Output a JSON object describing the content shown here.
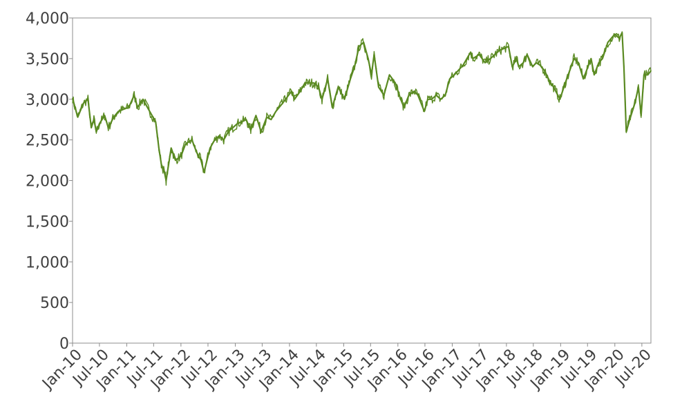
{
  "chart_data": {
    "type": "line",
    "title": "",
    "xlabel": "",
    "ylabel": "",
    "ylim": [
      0,
      4000
    ],
    "yticks": [
      {
        "value": 0,
        "label": "0"
      },
      {
        "value": 500,
        "label": "500"
      },
      {
        "value": 1000,
        "label": "1,000"
      },
      {
        "value": 1500,
        "label": "1,500"
      },
      {
        "value": 2000,
        "label": "2,000"
      },
      {
        "value": 2500,
        "label": "2,500"
      },
      {
        "value": 3000,
        "label": "3,000"
      },
      {
        "value": 3500,
        "label": "3,500"
      },
      {
        "value": 4000,
        "label": "4,000"
      }
    ],
    "xlim": [
      "2010-01-01",
      "2020-08-31"
    ],
    "xticks": [
      {
        "date": "2010-01-01",
        "label": "Jan-10"
      },
      {
        "date": "2010-07-01",
        "label": "Jul-10"
      },
      {
        "date": "2011-01-01",
        "label": "Jan-11"
      },
      {
        "date": "2011-07-01",
        "label": "Jul-11"
      },
      {
        "date": "2012-01-01",
        "label": "Jan-12"
      },
      {
        "date": "2012-07-01",
        "label": "Jul-12"
      },
      {
        "date": "2013-01-01",
        "label": "Jan-13"
      },
      {
        "date": "2013-07-01",
        "label": "Jul-13"
      },
      {
        "date": "2014-01-01",
        "label": "Jan-14"
      },
      {
        "date": "2014-07-01",
        "label": "Jul-14"
      },
      {
        "date": "2015-01-01",
        "label": "Jan-15"
      },
      {
        "date": "2015-07-01",
        "label": "Jul-15"
      },
      {
        "date": "2016-01-01",
        "label": "Jan-16"
      },
      {
        "date": "2016-07-01",
        "label": "Jul-16"
      },
      {
        "date": "2017-01-01",
        "label": "Jan-17"
      },
      {
        "date": "2017-07-01",
        "label": "Jul-17"
      },
      {
        "date": "2018-01-01",
        "label": "Jan-18"
      },
      {
        "date": "2018-07-01",
        "label": "Jul-18"
      },
      {
        "date": "2019-01-01",
        "label": "Jan-19"
      },
      {
        "date": "2019-07-01",
        "label": "Jul-19"
      },
      {
        "date": "2020-01-01",
        "label": "Jan-20"
      },
      {
        "date": "2020-07-01",
        "label": "Jul-20"
      }
    ],
    "grid": false,
    "legend": "none",
    "series": [
      {
        "color": "#5a8a22",
        "x": [
          "2010-01-01",
          "2010-02-05",
          "2010-03-15",
          "2010-04-15",
          "2010-05-07",
          "2010-05-25",
          "2010-06-10",
          "2010-07-01",
          "2010-08-05",
          "2010-08-30",
          "2010-10-05",
          "2010-11-05",
          "2010-12-15",
          "2011-01-15",
          "2011-02-20",
          "2011-03-15",
          "2011-04-20",
          "2011-05-20",
          "2011-06-20",
          "2011-07-15",
          "2011-08-05",
          "2011-08-22",
          "2011-09-12",
          "2011-09-23",
          "2011-10-27",
          "2011-11-25",
          "2012-01-01",
          "2012-02-01",
          "2012-03-15",
          "2012-04-15",
          "2012-05-15",
          "2012-06-04",
          "2012-07-15",
          "2012-08-15",
          "2012-09-15",
          "2012-10-15",
          "2012-11-15",
          "2013-01-15",
          "2013-03-15",
          "2013-04-15",
          "2013-05-20",
          "2013-06-24",
          "2013-08-01",
          "2013-08-30",
          "2013-10-01",
          "2013-11-15",
          "2014-01-15",
          "2014-02-04",
          "2014-03-15",
          "2014-04-15",
          "2014-06-15",
          "2014-07-15",
          "2014-08-08",
          "2014-09-15",
          "2014-10-16",
          "2014-11-25",
          "2015-01-06",
          "2015-02-15",
          "2015-03-15",
          "2015-04-15",
          "2015-05-15",
          "2015-06-15",
          "2015-07-07",
          "2015-07-25",
          "2015-08-24",
          "2015-09-29",
          "2015-11-05",
          "2015-12-14",
          "2016-01-20",
          "2016-02-11",
          "2016-03-15",
          "2016-04-20",
          "2016-05-15",
          "2016-06-27",
          "2016-07-20",
          "2016-08-15",
          "2016-09-15",
          "2016-10-15",
          "2016-11-15",
          "2016-12-15",
          "2017-01-15",
          "2017-03-15",
          "2017-05-05",
          "2017-05-20",
          "2017-07-01",
          "2017-08-10",
          "2017-09-15",
          "2017-10-15",
          "2017-11-15",
          "2018-01-15",
          "2018-02-09",
          "2018-03-10",
          "2018-03-25",
          "2018-04-25",
          "2018-05-20",
          "2018-06-27",
          "2018-07-20",
          "2018-08-15",
          "2018-09-15",
          "2018-10-25",
          "2018-11-15",
          "2018-12-27",
          "2019-02-01",
          "2019-04-01",
          "2019-05-01",
          "2019-06-03",
          "2019-07-25",
          "2019-08-15",
          "2019-09-15",
          "2019-10-10",
          "2019-11-15",
          "2019-12-31",
          "2020-01-31",
          "2020-02-19",
          "2020-03-02",
          "2020-03-18",
          "2020-04-10",
          "2020-05-15",
          "2020-06-08",
          "2020-06-26",
          "2020-07-15",
          "2020-08-10",
          "2020-08-31"
        ],
        "values": [
          3010,
          2780,
          2950,
          3000,
          2650,
          2750,
          2600,
          2700,
          2800,
          2650,
          2780,
          2850,
          2880,
          2900,
          3050,
          2900,
          3000,
          2900,
          2800,
          2720,
          2400,
          2200,
          2100,
          2000,
          2400,
          2250,
          2300,
          2450,
          2500,
          2350,
          2250,
          2100,
          2400,
          2500,
          2550,
          2500,
          2600,
          2700,
          2750,
          2620,
          2800,
          2600,
          2780,
          2750,
          2850,
          2950,
          3100,
          3000,
          3100,
          3200,
          3200,
          3150,
          3000,
          3250,
          2900,
          3150,
          3000,
          3250,
          3400,
          3650,
          3700,
          3500,
          3300,
          3550,
          3150,
          3050,
          3300,
          3200,
          3000,
          2900,
          3050,
          3100,
          3050,
          2850,
          3000,
          3000,
          3050,
          3000,
          3050,
          3250,
          3300,
          3420,
          3580,
          3500,
          3550,
          3450,
          3500,
          3550,
          3600,
          3650,
          3400,
          3500,
          3400,
          3450,
          3550,
          3400,
          3450,
          3420,
          3350,
          3200,
          3150,
          3000,
          3200,
          3500,
          3450,
          3250,
          3500,
          3300,
          3450,
          3500,
          3700,
          3800,
          3750,
          3820,
          3400,
          2600,
          2750,
          2950,
          3150,
          2800,
          3300,
          3300,
          3350
        ]
      }
    ]
  }
}
